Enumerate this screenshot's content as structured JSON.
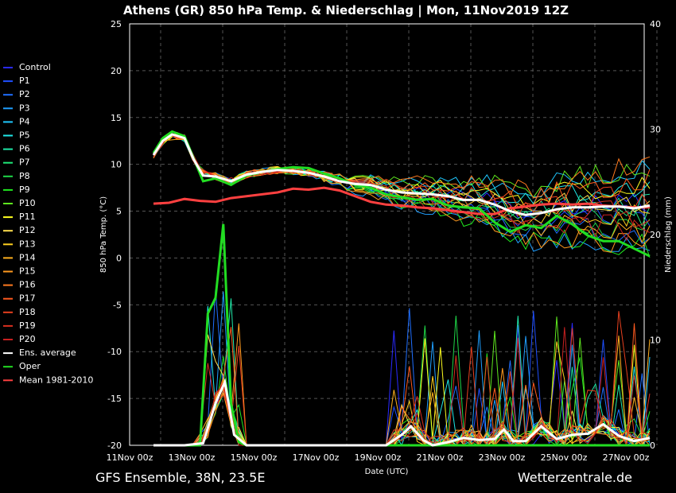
{
  "chart_data": {
    "type": "line",
    "title": "Athens  (GR)  850 hPa Temp. & Niederschlag | Mon, 11Nov2019 12Z",
    "footer_left": "GFS Ensemble, 38N, 23.5E",
    "footer_right": "Wetterzentrale.de",
    "xlabel": "Date (UTC)",
    "ylabel": "850 hPa Temp. (°C)",
    "y2label": "Niederschlag (mm)",
    "x_range_days": [
      0,
      16
    ],
    "ylim": [
      -20,
      25
    ],
    "y2lim": [
      0,
      40
    ],
    "y_ticks": [
      -20,
      -15,
      -10,
      -5,
      0,
      5,
      10,
      15,
      20,
      25
    ],
    "y2_ticks": [
      0,
      10,
      20,
      30,
      40
    ],
    "x_ticks": [
      {
        "day": 0,
        "label": "11Nov 00z"
      },
      {
        "day": 2,
        "label": "13Nov 00z"
      },
      {
        "day": 4,
        "label": "15Nov 00z"
      },
      {
        "day": 6,
        "label": "17Nov 00z"
      },
      {
        "day": 8,
        "label": "19Nov 00z"
      },
      {
        "day": 10,
        "label": "21Nov 00z"
      },
      {
        "day": 12,
        "label": "23Nov 00z"
      },
      {
        "day": 14,
        "label": "25Nov 00z"
      },
      {
        "day": 16,
        "label": "27Nov 00z"
      }
    ],
    "grid": true,
    "legend_position": "left",
    "members": [
      {
        "name": "Control",
        "color": "#2a2aff"
      },
      {
        "name": "P1",
        "color": "#1f4fff"
      },
      {
        "name": "P2",
        "color": "#1f6fff"
      },
      {
        "name": "P3",
        "color": "#1f9fff"
      },
      {
        "name": "P4",
        "color": "#1fc8ff"
      },
      {
        "name": "P5",
        "color": "#1fe8e8"
      },
      {
        "name": "P6",
        "color": "#1fe8a8"
      },
      {
        "name": "P7",
        "color": "#1fe878"
      },
      {
        "name": "P8",
        "color": "#1fd848"
      },
      {
        "name": "P9",
        "color": "#1fe81f"
      },
      {
        "name": "P10",
        "color": "#5fe81f"
      },
      {
        "name": "P11",
        "color": "#ffff1f"
      },
      {
        "name": "P12",
        "color": "#ffe04f"
      },
      {
        "name": "P13",
        "color": "#ffd01f"
      },
      {
        "name": "P14",
        "color": "#ffb01f"
      },
      {
        "name": "P15",
        "color": "#ff9a1f"
      },
      {
        "name": "P16",
        "color": "#ff7a1f"
      },
      {
        "name": "P17",
        "color": "#ff5a1f"
      },
      {
        "name": "P18",
        "color": "#e8401f"
      },
      {
        "name": "P19",
        "color": "#d8301f"
      },
      {
        "name": "P20",
        "color": "#c82020"
      }
    ],
    "special_series": [
      {
        "name": "Ens. average",
        "color": "#ffffff"
      },
      {
        "name": "Oper",
        "color": "#22dd22"
      },
      {
        "name": "Mean 1981-2010",
        "color": "#ff4040"
      }
    ],
    "ens_average_temp": [
      [
        0.0,
        11.0
      ],
      [
        0.3,
        12.5
      ],
      [
        0.6,
        13.2
      ],
      [
        1.0,
        12.8
      ],
      [
        1.3,
        10.5
      ],
      [
        1.6,
        8.8
      ],
      [
        2.0,
        8.7
      ],
      [
        2.5,
        8.2
      ],
      [
        3.0,
        8.9
      ],
      [
        3.5,
        9.2
      ],
      [
        4.0,
        9.4
      ],
      [
        4.5,
        9.3
      ],
      [
        5.0,
        9.1
      ],
      [
        5.5,
        8.7
      ],
      [
        6.0,
        8.2
      ],
      [
        6.5,
        7.9
      ],
      [
        7.0,
        7.8
      ],
      [
        7.5,
        7.3
      ],
      [
        8.0,
        7.0
      ],
      [
        8.5,
        6.9
      ],
      [
        9.0,
        6.8
      ],
      [
        9.5,
        6.6
      ],
      [
        10.0,
        6.2
      ],
      [
        10.5,
        6.2
      ],
      [
        11.0,
        5.7
      ],
      [
        11.5,
        5.0
      ],
      [
        12.0,
        4.6
      ],
      [
        12.5,
        4.8
      ],
      [
        13.0,
        5.2
      ],
      [
        13.5,
        5.4
      ],
      [
        14.0,
        5.4
      ],
      [
        14.5,
        5.5
      ],
      [
        15.0,
        5.5
      ],
      [
        15.5,
        5.3
      ],
      [
        16.0,
        5.6
      ]
    ],
    "oper_temp": [
      [
        0.0,
        11.2
      ],
      [
        0.3,
        12.8
      ],
      [
        0.6,
        13.5
      ],
      [
        1.0,
        13.0
      ],
      [
        1.3,
        10.6
      ],
      [
        1.6,
        8.2
      ],
      [
        2.0,
        8.5
      ],
      [
        2.5,
        7.8
      ],
      [
        3.0,
        8.8
      ],
      [
        3.5,
        9.2
      ],
      [
        4.0,
        9.5
      ],
      [
        4.5,
        9.7
      ],
      [
        5.0,
        9.6
      ],
      [
        5.5,
        9.0
      ],
      [
        6.0,
        8.5
      ],
      [
        6.5,
        7.8
      ],
      [
        7.0,
        7.5
      ],
      [
        7.5,
        6.8
      ],
      [
        8.0,
        6.5
      ],
      [
        8.5,
        6.2
      ],
      [
        9.0,
        6.3
      ],
      [
        9.5,
        5.6
      ],
      [
        10.0,
        5.4
      ],
      [
        10.5,
        5.3
      ],
      [
        11.0,
        3.8
      ],
      [
        11.5,
        2.8
      ],
      [
        12.0,
        3.5
      ],
      [
        12.5,
        3.2
      ],
      [
        13.0,
        4.5
      ],
      [
        13.5,
        3.6
      ],
      [
        14.0,
        2.4
      ],
      [
        14.5,
        1.8
      ],
      [
        15.0,
        1.8
      ],
      [
        15.5,
        1.0
      ],
      [
        16.0,
        0.2
      ]
    ],
    "mean_1981_2010_temp": [
      [
        0.0,
        5.8
      ],
      [
        0.5,
        5.9
      ],
      [
        1.0,
        6.3
      ],
      [
        1.5,
        6.1
      ],
      [
        2.0,
        6.0
      ],
      [
        2.5,
        6.4
      ],
      [
        3.0,
        6.6
      ],
      [
        3.5,
        6.8
      ],
      [
        4.0,
        7.0
      ],
      [
        4.5,
        7.4
      ],
      [
        5.0,
        7.3
      ],
      [
        5.5,
        7.5
      ],
      [
        6.0,
        7.2
      ],
      [
        6.5,
        6.6
      ],
      [
        7.0,
        6.0
      ],
      [
        7.5,
        5.7
      ],
      [
        8.0,
        5.6
      ],
      [
        8.5,
        5.4
      ],
      [
        9.0,
        5.3
      ],
      [
        9.5,
        5.1
      ],
      [
        10.0,
        4.9
      ],
      [
        10.5,
        4.7
      ],
      [
        11.0,
        4.7
      ],
      [
        11.5,
        5.3
      ],
      [
        12.0,
        5.5
      ],
      [
        12.5,
        5.7
      ],
      [
        13.0,
        5.8
      ],
      [
        13.5,
        5.7
      ],
      [
        14.0,
        5.8
      ],
      [
        14.5,
        5.6
      ],
      [
        15.0,
        5.5
      ],
      [
        15.5,
        5.4
      ],
      [
        16.0,
        5.4
      ]
    ],
    "ens_average_precip_mm": [
      [
        0.0,
        0.0
      ],
      [
        1.0,
        0.0
      ],
      [
        1.6,
        0.2
      ],
      [
        2.0,
        4.0
      ],
      [
        2.3,
        6.0
      ],
      [
        2.6,
        1.0
      ],
      [
        3.0,
        0.0
      ],
      [
        7.5,
        0.0
      ],
      [
        8.0,
        1.0
      ],
      [
        8.3,
        1.8
      ],
      [
        8.7,
        0.5
      ],
      [
        9.0,
        0.0
      ],
      [
        9.5,
        0.3
      ],
      [
        10.0,
        0.7
      ],
      [
        10.5,
        0.5
      ],
      [
        11.0,
        0.6
      ],
      [
        11.3,
        1.5
      ],
      [
        11.6,
        0.4
      ],
      [
        12.0,
        0.4
      ],
      [
        12.5,
        1.8
      ],
      [
        13.0,
        0.6
      ],
      [
        13.5,
        1.0
      ],
      [
        14.0,
        1.1
      ],
      [
        14.5,
        2.0
      ],
      [
        15.0,
        0.9
      ],
      [
        15.5,
        0.4
      ],
      [
        16.0,
        0.7
      ]
    ],
    "oper_precip_mm": [
      [
        0.0,
        0.0
      ],
      [
        1.5,
        0.0
      ],
      [
        1.75,
        12.5
      ],
      [
        2.0,
        14.0
      ],
      [
        2.25,
        21.0
      ],
      [
        2.5,
        4.0
      ],
      [
        2.75,
        0.3
      ],
      [
        3.0,
        0.0
      ],
      [
        16.0,
        0.0
      ]
    ]
  }
}
